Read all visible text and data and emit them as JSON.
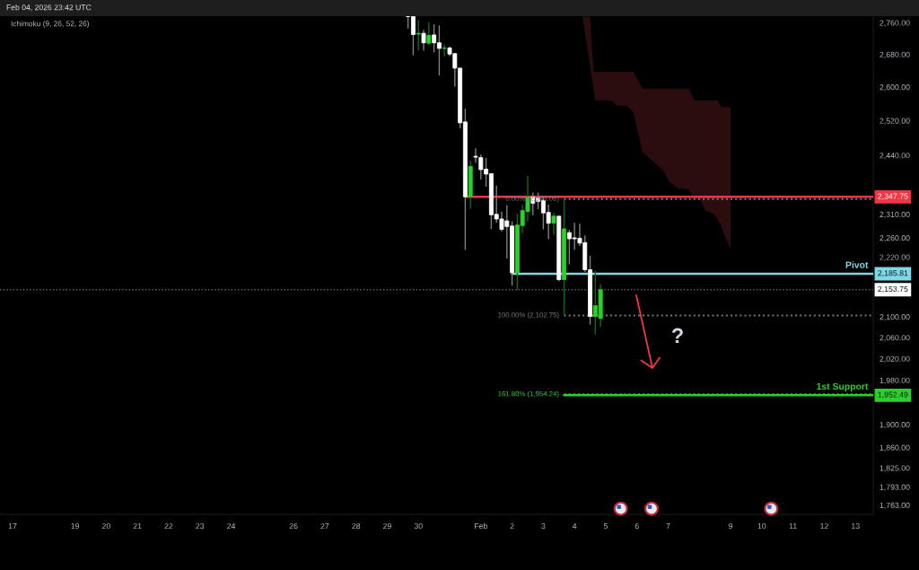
{
  "chart_data": {
    "type": "candlestick",
    "x": [
      "2026-01-29T16:00",
      "2026-01-29T20:00",
      "2026-01-30T00:00",
      "2026-01-30T04:00",
      "2026-01-30T08:00",
      "2026-01-30T12:00",
      "2026-01-30T16:00",
      "2026-01-30T20:00",
      "2026-01-31T00:00",
      "2026-01-31T04:00",
      "2026-01-31T08:00",
      "2026-01-31T12:00",
      "2026-01-31T16:00",
      "2026-01-31T20:00",
      "2026-02-01T00:00",
      "2026-02-01T04:00",
      "2026-02-01T08:00",
      "2026-02-01T12:00",
      "2026-02-01T16:00",
      "2026-02-01T20:00",
      "2026-02-02T00:00",
      "2026-02-02T04:00",
      "2026-02-02T08:00",
      "2026-02-02T12:00",
      "2026-02-02T16:00",
      "2026-02-02T20:00",
      "2026-02-03T00:00",
      "2026-02-03T04:00",
      "2026-02-03T08:00",
      "2026-02-03T12:00",
      "2026-02-03T16:00",
      "2026-02-03T20:00",
      "2026-02-04T00:00",
      "2026-02-04T04:00",
      "2026-02-04T08:00",
      "2026-02-04T12:00",
      "2026-02-04T16:00",
      "2026-02-04T20:00"
    ],
    "ohlc": [
      [
        2776,
        2776,
        2745,
        2776
      ],
      [
        2776,
        2776,
        2678,
        2730
      ],
      [
        2731,
        2767,
        2690,
        2733
      ],
      [
        2733,
        2742,
        2689,
        2709
      ],
      [
        2708,
        2761,
        2705,
        2728
      ],
      [
        2729,
        2756,
        2685,
        2709
      ],
      [
        2709,
        2753,
        2628,
        2695
      ],
      [
        2695,
        2705,
        2675,
        2696
      ],
      [
        2696,
        2700,
        2675,
        2681
      ],
      [
        2682,
        2683,
        2601,
        2646
      ],
      [
        2646,
        2647,
        2502,
        2515
      ],
      [
        2517,
        2548,
        2235,
        2348
      ],
      [
        2348,
        2428,
        2322,
        2415
      ],
      [
        2438,
        2456,
        2423,
        2436
      ],
      [
        2435,
        2442,
        2386,
        2408
      ],
      [
        2409,
        2434,
        2370,
        2398
      ],
      [
        2399,
        2400,
        2279,
        2309
      ],
      [
        2310,
        2372,
        2292,
        2300
      ],
      [
        2300,
        2316,
        2273,
        2278
      ],
      [
        2296,
        2330,
        2217,
        2284
      ],
      [
        2285,
        2295,
        2162,
        2188
      ],
      [
        2188,
        2311,
        2153,
        2287
      ],
      [
        2286,
        2331,
        2270,
        2318
      ],
      [
        2316,
        2394,
        2295,
        2347
      ],
      [
        2347,
        2357,
        2308,
        2334
      ],
      [
        2345,
        2357,
        2321,
        2338
      ],
      [
        2340,
        2350,
        2278,
        2313
      ],
      [
        2314,
        2331,
        2257,
        2291
      ],
      [
        2291,
        2313,
        2267,
        2306
      ],
      [
        2306,
        2306,
        2171,
        2174
      ],
      [
        2174,
        2343,
        2103,
        2279
      ],
      [
        2271,
        2277,
        2205,
        2258
      ],
      [
        2260,
        2292,
        2235,
        2258
      ],
      [
        2259,
        2290,
        2243,
        2249
      ],
      [
        2250,
        2265,
        2190,
        2194
      ],
      [
        2194,
        2223,
        2085,
        2101
      ],
      [
        2101,
        2192,
        2066,
        2122
      ],
      [
        2097,
        2165,
        2081,
        2153.75
      ]
    ],
    "colors": [
      "#ffffff",
      "#ffffff",
      "#2ad12a",
      "#ffffff",
      "#2ad12a",
      "#ffffff",
      "#ffffff",
      "#2ad12a",
      "#ffffff",
      "#ffffff",
      "#ffffff",
      "#ffffff",
      "#2ad12a",
      "#ffffff",
      "#ffffff",
      "#ffffff",
      "#ffffff",
      "#ffffff",
      "#ffffff",
      "#ffffff",
      "#ffffff",
      "#2ad12a",
      "#2ad12a",
      "#2ad12a",
      "#ffffff",
      "#ffffff",
      "#ffffff",
      "#ffffff",
      "#2ad12a",
      "#ffffff",
      "#2ad12a",
      "#ffffff",
      "#ffffff",
      "#ffffff",
      "#ffffff",
      "#ffffff",
      "#2ad12a",
      "#2ad12a"
    ],
    "series": [
      {
        "type": "area",
        "color": "#2b0d0f",
        "x": [
          "2026-02-04T06:05",
          "2026-02-04T11:53",
          "2026-02-04T14:39",
          "2026-02-04T16:01",
          "2026-02-05T03:58",
          "2026-02-05T08:36",
          "2026-02-05T16:37",
          "2026-02-05T21:14",
          "2026-02-06T04:09",
          "2026-02-06T20:14",
          "2026-02-07T00:52",
          "2026-02-07T07:46",
          "2026-02-07T15:51",
          "2026-02-07T19:18",
          "2026-02-07T19:59",
          "2026-02-08T01:02",
          "2026-02-08T04:29",
          "2026-02-08T11:24",
          "2026-02-08T13:40",
          "2026-02-08T16:01",
          "2026-02-08T17:08",
          "2026-02-08T20:35",
          "2026-02-09T00:02"
        ],
        "values": [
          null,
          null,
          null,
          null,
          null,
          null,
          null,
          null,
          null,
          null,
          null,
          null,
          null,
          null,
          null,
          null,
          null,
          null,
          null,
          null,
          null,
          null,
          null
        ],
        "upper": [
          2776,
          2776,
          2637,
          2637,
          2637,
          2637,
          2637,
          2637,
          2596,
          2596,
          2596,
          2596,
          2596,
          2573,
          2568,
          2568,
          2568,
          2568,
          2568,
          2557,
          2552,
          2552,
          2552
        ],
        "lower": [
          2776,
          2653,
          2596,
          2568,
          2568,
          2556,
          2554,
          2540,
          2448,
          2406,
          2381,
          2366,
          2364,
          2345,
          2344,
          2340,
          2318,
          2311,
          2300,
          2289,
          2281,
          2257,
          2238
        ]
      },
      {
        "type": "line",
        "color": "#f23645",
        "line_style": "solid",
        "x": [
          "2026-01-31T12:00",
          "2026-02-13T13:38"
        ],
        "values": [
          2347.75,
          2347.75
        ],
        "value_labels": [
          null,
          "2,347.75"
        ]
      },
      {
        "type": "line",
        "color": "#787b86",
        "line_style": "dotted",
        "x": [
          "2026-02-03T16:00",
          "2026-02-13T13:38"
        ],
        "values": [
          2343.06,
          2343.06
        ],
        "value_labels": [
          "0.00% (2,343.06)",
          null
        ]
      },
      {
        "type": "line",
        "name": "Pivot",
        "color": "#7fd8e6",
        "line_style": "solid",
        "x": [
          "2026-02-02T00:00",
          "2026-02-13T13:38"
        ],
        "values": [
          2185.81,
          2185.81
        ],
        "value_labels": [
          null,
          "2,185.81"
        ]
      },
      {
        "type": "line",
        "color": "#787b86",
        "line_style": "dotted",
        "x": [
          "2026-02-03T16:00",
          "2026-02-13T13:38"
        ],
        "values": [
          2102.75,
          2102.75
        ],
        "value_labels": [
          "100.00% (2,102.75)",
          null
        ]
      },
      {
        "type": "line",
        "name": "1st Support",
        "color": "#2ad12a",
        "line_style": "solid",
        "x": [
          "2026-02-03T16:00",
          "2026-02-13T13:38"
        ],
        "values": [
          1952.49,
          1952.49
        ],
        "value_labels": [
          null,
          "1,952.49"
        ]
      },
      {
        "type": "line",
        "color": "#2ad12a",
        "line_style": "dotted",
        "x": [
          "2026-02-03T16:00",
          "2026-02-13T13:38"
        ],
        "values": [
          1954.24,
          1954.24
        ],
        "value_labels": [
          "161.80% (1,954.24)",
          null
        ]
      }
    ],
    "ref_lines": [
      {
        "axis": "y",
        "value": 2153.75,
        "label": "2,153.75",
        "color": "#5d606b",
        "line_style": "dotted"
      }
    ],
    "annotations": [
      "Feb 04, 2026 23:42 UTC",
      "Ichimoku (9, 26, 52, 26)",
      "?"
    ],
    "log": true,
    "xlim": [
      "2026-01-16T14:20",
      "2026-02-13T13:38"
    ],
    "ylim": [
      1748,
      2777
    ],
    "xticks": [
      {
        "value": "2026-01-17",
        "label": "17"
      },
      {
        "value": "2026-01-19",
        "label": "19"
      },
      {
        "value": "2026-01-20",
        "label": "20"
      },
      {
        "value": "2026-01-21",
        "label": "21"
      },
      {
        "value": "2026-01-22",
        "label": "22"
      },
      {
        "value": "2026-01-23",
        "label": "23"
      },
      {
        "value": "2026-01-24",
        "label": "24"
      },
      {
        "value": "2026-01-26",
        "label": "26"
      },
      {
        "value": "2026-01-27",
        "label": "27"
      },
      {
        "value": "2026-01-28",
        "label": "28"
      },
      {
        "value": "2026-01-29",
        "label": "29"
      },
      {
        "value": "2026-01-30",
        "label": "30"
      },
      {
        "value": "2026-02-01",
        "label": "Feb"
      },
      {
        "value": "2026-02-02",
        "label": "2"
      },
      {
        "value": "2026-02-03",
        "label": "3"
      },
      {
        "value": "2026-02-04",
        "label": "4"
      },
      {
        "value": "2026-02-05",
        "label": "5"
      },
      {
        "value": "2026-02-06",
        "label": "6"
      },
      {
        "value": "2026-02-07",
        "label": "7"
      },
      {
        "value": "2026-02-09",
        "label": "9"
      },
      {
        "value": "2026-02-10",
        "label": "10"
      },
      {
        "value": "2026-02-11",
        "label": "11"
      },
      {
        "value": "2026-02-12",
        "label": "12"
      },
      {
        "value": "2026-02-13",
        "label": "13"
      }
    ],
    "yticks": [
      {
        "value": 2760,
        "label": "2,760.00"
      },
      {
        "value": 2680,
        "label": "2,680.00"
      },
      {
        "value": 2600,
        "label": "2,600.00"
      },
      {
        "value": 2520,
        "label": "2,520.00"
      },
      {
        "value": 2440,
        "label": "2,440.00"
      },
      {
        "value": 2310,
        "label": "2,310.00"
      },
      {
        "value": 2260,
        "label": "2,260.00"
      },
      {
        "value": 2220,
        "label": "2,220.00"
      },
      {
        "value": 2100,
        "label": "2,100.00"
      },
      {
        "value": 2060,
        "label": "2,060.00"
      },
      {
        "value": 2020,
        "label": "2,020.00"
      },
      {
        "value": 1980,
        "label": "1,980.00"
      },
      {
        "value": 1900,
        "label": "1,900.00"
      },
      {
        "value": 1860,
        "label": "1,860.00"
      },
      {
        "value": 1825,
        "label": "1,825.00"
      },
      {
        "value": 1793,
        "label": "1,793.00"
      },
      {
        "value": 1763,
        "label": "1,763.00"
      }
    ]
  }
}
